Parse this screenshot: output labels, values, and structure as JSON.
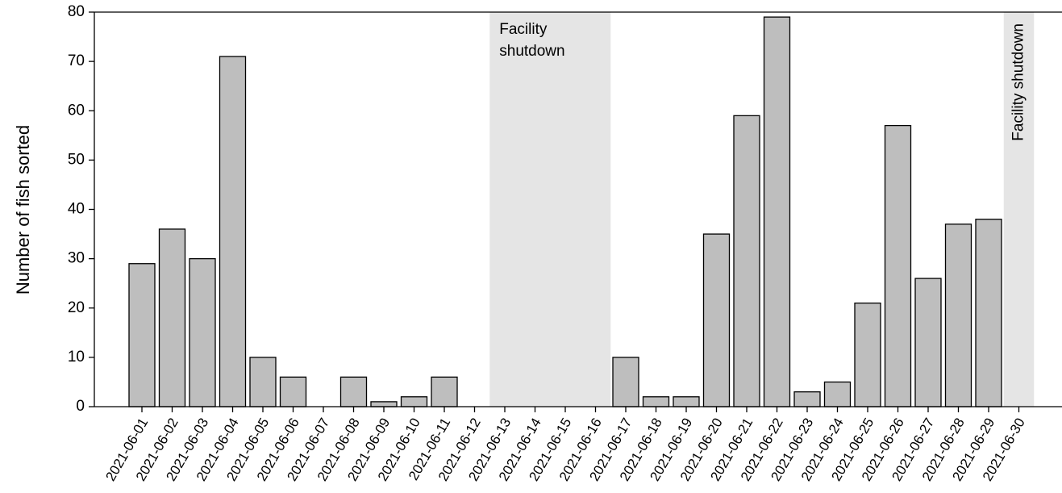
{
  "chart_data": {
    "type": "bar",
    "y_label": "Number of fish sorted",
    "categories": [
      "2021-06-01",
      "2021-06-02",
      "2021-06-03",
      "2021-06-04",
      "2021-06-05",
      "2021-06-06",
      "2021-06-07",
      "2021-06-08",
      "2021-06-09",
      "2021-06-10",
      "2021-06-11",
      "2021-06-12",
      "2021-06-13",
      "2021-06-14",
      "2021-06-15",
      "2021-06-16",
      "2021-06-17",
      "2021-06-18",
      "2021-06-19",
      "2021-06-20",
      "2021-06-21",
      "2021-06-22",
      "2021-06-23",
      "2021-06-24",
      "2021-06-25",
      "2021-06-26",
      "2021-06-27",
      "2021-06-28",
      "2021-06-29",
      "2021-06-30"
    ],
    "values": [
      29,
      36,
      30,
      71,
      10,
      6,
      0,
      6,
      1,
      2,
      6,
      0,
      null,
      null,
      null,
      null,
      10,
      2,
      2,
      35,
      59,
      79,
      3,
      5,
      21,
      57,
      26,
      37,
      38,
      null
    ],
    "color": "#bebebe",
    "ylim": [
      0,
      80
    ],
    "yticks": [
      0,
      10,
      20,
      30,
      40,
      50,
      60,
      70,
      80
    ],
    "annotations": [
      {
        "text": "Facility shutdown",
        "start": "2021-06-13",
        "end": "2021-06-16",
        "rotated": false
      },
      {
        "text": "Facility shutdown",
        "start": "2021-06-30",
        "end": "2021-06-30",
        "rotated": true
      }
    ],
    "shade_color": "#e5e5e5"
  }
}
